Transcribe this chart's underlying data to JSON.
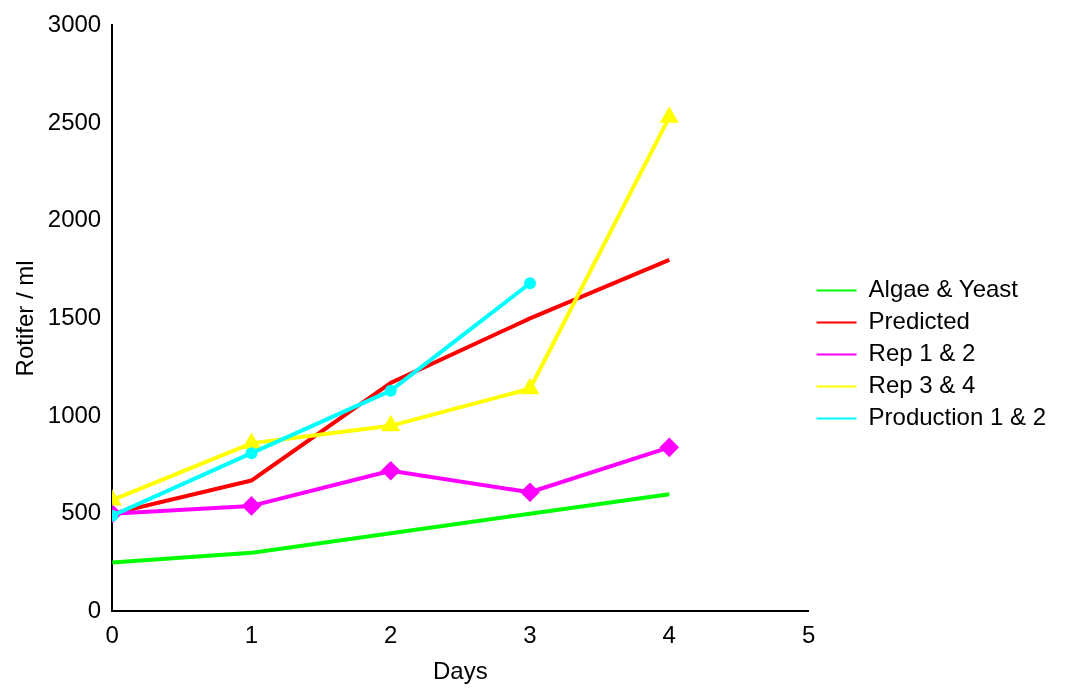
{
  "chart_data": {
    "type": "line",
    "xlabel": "Days",
    "ylabel": "Rotifer / ml",
    "x": [
      0,
      1,
      2,
      3,
      4
    ],
    "xlim": [
      0,
      5
    ],
    "xticks": [
      0,
      1,
      2,
      3,
      4,
      5
    ],
    "ylim": [
      0,
      3000
    ],
    "yticks": [
      0,
      500,
      1000,
      1500,
      2000,
      2500,
      3000
    ],
    "grid": false,
    "legend": "right",
    "series": [
      {
        "name": "Algae & Yeast",
        "color": "#00ff00",
        "marker": "none",
        "values": [
          250,
          300,
          400,
          500,
          600
        ]
      },
      {
        "name": "Predicted",
        "color": "#ff0000",
        "marker": "none",
        "values": [
          500,
          670,
          1170,
          1500,
          1800
        ]
      },
      {
        "name": "Rep 1 & 2",
        "color": "#ff00ff",
        "marker": "diamond",
        "values": [
          500,
          540,
          720,
          610,
          840
        ]
      },
      {
        "name": "Rep 3 & 4",
        "color": "#ffff00",
        "marker": "triangle",
        "values": [
          570,
          860,
          950,
          1140,
          2530
        ]
      },
      {
        "name": "Production 1 & 2",
        "color": "#00ffff",
        "marker": "circle",
        "values": [
          490,
          810,
          1130,
          1680,
          null
        ]
      }
    ]
  }
}
